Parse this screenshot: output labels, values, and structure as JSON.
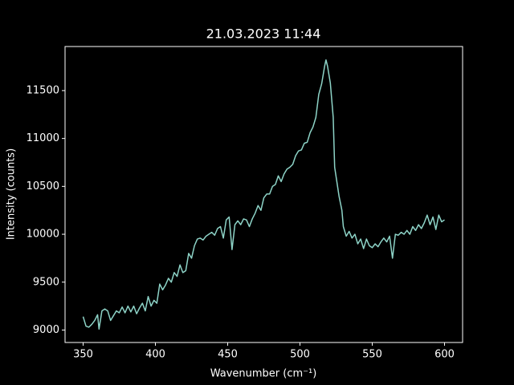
{
  "chart_data": {
    "type": "line",
    "title": "21.03.2023 11:44",
    "x_label": "Wavenumber (cm⁻¹)",
    "y_label": "Intensity (counts)",
    "xlim": [
      337.5,
      612.5
    ],
    "xticks": [
      350,
      400,
      450,
      500,
      550,
      600
    ],
    "ylim": [
      8870,
      11960
    ],
    "yticks": [
      9000,
      9500,
      10000,
      10500,
      11000,
      11500
    ],
    "series": [
      {
        "color": "#8dd3c7",
        "x": [
          350,
          352,
          354,
          356,
          358,
          360,
          361,
          363,
          365,
          367,
          369,
          371,
          373,
          375,
          377,
          379,
          381,
          383,
          385,
          387,
          389,
          391,
          393,
          395,
          397,
          399,
          401,
          403,
          405,
          407,
          409,
          411,
          413,
          415,
          417,
          419,
          421,
          423,
          425,
          427,
          429,
          431,
          433,
          435,
          437,
          439,
          441,
          443,
          445,
          447,
          449,
          451,
          453,
          455,
          457,
          459,
          461,
          463,
          465,
          467,
          469,
          471,
          473,
          475,
          477,
          479,
          481,
          483,
          485,
          487,
          489,
          491,
          493,
          495,
          497,
          499,
          501,
          503,
          505,
          507,
          509,
          511,
          513,
          515,
          517,
          518,
          519,
          521,
          523,
          524,
          527,
          529,
          530,
          532,
          534,
          536,
          538,
          540,
          542,
          544,
          546,
          548,
          550,
          552,
          554,
          556,
          558,
          560,
          562,
          564,
          566,
          568,
          570,
          572,
          574,
          576,
          578,
          580,
          582,
          584,
          586,
          588,
          590,
          592,
          594,
          596,
          598,
          600
        ],
        "values": [
          9140,
          9040,
          9030,
          9060,
          9100,
          9160,
          9010,
          9200,
          9220,
          9200,
          9100,
          9150,
          9200,
          9180,
          9240,
          9180,
          9250,
          9190,
          9250,
          9170,
          9230,
          9280,
          9200,
          9350,
          9250,
          9310,
          9280,
          9480,
          9420,
          9470,
          9540,
          9500,
          9600,
          9560,
          9680,
          9600,
          9620,
          9800,
          9750,
          9880,
          9950,
          9960,
          9940,
          9980,
          10000,
          10020,
          9990,
          10060,
          10080,
          9960,
          10150,
          10180,
          9840,
          10100,
          10140,
          10100,
          10160,
          10150,
          10080,
          10160,
          10220,
          10300,
          10250,
          10380,
          10420,
          10420,
          10500,
          10520,
          10610,
          10550,
          10630,
          10680,
          10700,
          10730,
          10820,
          10870,
          10880,
          10950,
          10960,
          11060,
          11120,
          11220,
          11460,
          11570,
          11750,
          11820,
          11760,
          11580,
          11220,
          10700,
          10400,
          10250,
          10080,
          9980,
          10030,
          9960,
          10000,
          9900,
          9950,
          9850,
          9950,
          9880,
          9860,
          9900,
          9870,
          9920,
          9960,
          9920,
          9980,
          9750,
          10000,
          9990,
          10020,
          10000,
          10040,
          10000,
          10080,
          10040,
          10100,
          10060,
          10120,
          10200,
          10100,
          10180,
          10050,
          10200,
          10130,
          10150
        ]
      }
    ]
  }
}
